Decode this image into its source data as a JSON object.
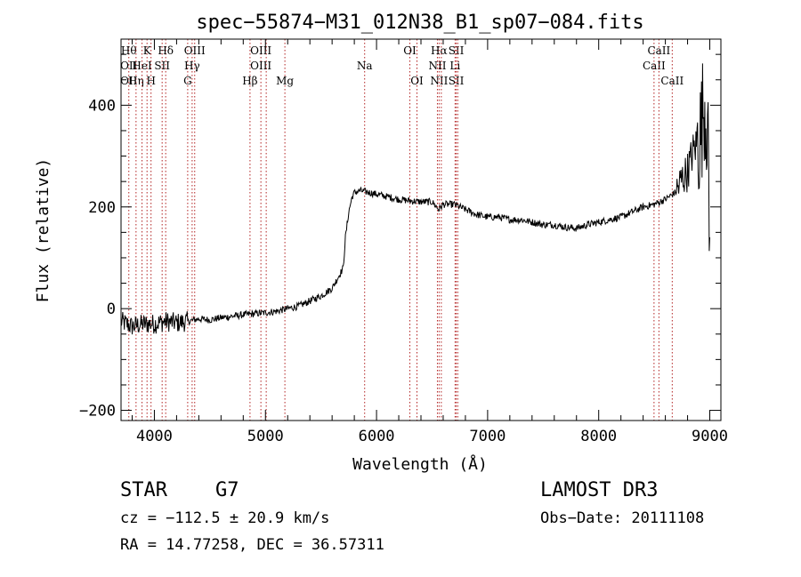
{
  "chart_data": {
    "type": "line",
    "title": "spec−55874−M31_012N38_B1_sp07−084.fits",
    "xlabel": "Wavelength (Å)",
    "ylabel": "Flux (relative)",
    "xlim": [
      3700,
      9100
    ],
    "ylim": [
      -220,
      530
    ],
    "x_ticks": [
      4000,
      5000,
      6000,
      7000,
      8000,
      9000
    ],
    "x_tick_labels": [
      "4000",
      "5000",
      "6000",
      "7000",
      "8000",
      "9000"
    ],
    "y_ticks": [
      -200,
      0,
      200,
      400
    ],
    "y_tick_labels": [
      "−200",
      "0",
      "200",
      "400"
    ],
    "grid": false,
    "series": [
      {
        "name": "flux",
        "color": "#000000",
        "x": [
          3700,
          3800,
          3900,
          4000,
          4100,
          4200,
          4300,
          4400,
          4500,
          4600,
          4700,
          4800,
          4900,
          5000,
          5100,
          5200,
          5300,
          5400,
          5500,
          5600,
          5650,
          5700,
          5720,
          5750,
          5780,
          5800,
          5850,
          5900,
          6000,
          6100,
          6200,
          6300,
          6400,
          6500,
          6560,
          6600,
          6700,
          6800,
          6900,
          7000,
          7100,
          7200,
          7300,
          7400,
          7500,
          7600,
          7700,
          7800,
          7900,
          8000,
          8100,
          8200,
          8300,
          8400,
          8500,
          8600,
          8700,
          8750,
          8800,
          8850,
          8900,
          8920,
          8950,
          8980,
          9000
        ],
        "y": [
          -25,
          -35,
          -30,
          -30,
          -25,
          -28,
          -25,
          -20,
          -22,
          -18,
          -15,
          -12,
          -10,
          -8,
          -5,
          0,
          5,
          15,
          25,
          40,
          60,
          80,
          140,
          190,
          220,
          228,
          232,
          230,
          225,
          220,
          215,
          212,
          210,
          210,
          195,
          205,
          205,
          195,
          185,
          180,
          180,
          175,
          175,
          170,
          165,
          165,
          160,
          158,
          165,
          170,
          175,
          180,
          190,
          200,
          205,
          215,
          230,
          255,
          270,
          310,
          330,
          350,
          410,
          360,
          100
        ]
      }
    ],
    "annotations": {
      "lines": [
        {
          "x": 3770,
          "labels": [
            "Hθ",
            "OII",
            "OII"
          ]
        },
        {
          "x": 3835,
          "labels": [
            "",
            "",
            "Hη"
          ]
        },
        {
          "x": 3889,
          "labels": [
            "",
            "HeI",
            ""
          ]
        },
        {
          "x": 3934,
          "labels": [
            "K",
            "",
            ""
          ]
        },
        {
          "x": 3970,
          "labels": [
            "",
            "",
            "H"
          ]
        },
        {
          "x": 4070,
          "labels": [
            "",
            "SII",
            ""
          ]
        },
        {
          "x": 4102,
          "labels": [
            "Hδ",
            "",
            ""
          ]
        },
        {
          "x": 4300,
          "labels": [
            "",
            "",
            "G"
          ]
        },
        {
          "x": 4340,
          "labels": [
            "",
            "Hγ",
            ""
          ]
        },
        {
          "x": 4363,
          "labels": [
            "OIII",
            "",
            ""
          ]
        },
        {
          "x": 4861,
          "labels": [
            "",
            "",
            "Hβ"
          ]
        },
        {
          "x": 4959,
          "labels": [
            "OIII",
            "OIII",
            ""
          ]
        },
        {
          "x": 5007,
          "labels": [
            "",
            "",
            ""
          ]
        },
        {
          "x": 5175,
          "labels": [
            "",
            "",
            "Mg"
          ]
        },
        {
          "x": 5893,
          "labels": [
            "",
            "Na",
            ""
          ]
        },
        {
          "x": 6300,
          "labels": [
            "OI",
            "",
            ""
          ]
        },
        {
          "x": 6364,
          "labels": [
            "",
            "",
            "OI"
          ]
        },
        {
          "x": 6548,
          "labels": [
            "",
            "NII",
            ""
          ]
        },
        {
          "x": 6563,
          "labels": [
            "Hα",
            "",
            "NII"
          ]
        },
        {
          "x": 6583,
          "labels": [
            "",
            "",
            ""
          ]
        },
        {
          "x": 6707,
          "labels": [
            "",
            "Li",
            ""
          ]
        },
        {
          "x": 6717,
          "labels": [
            "SII",
            "",
            "SII"
          ]
        },
        {
          "x": 6731,
          "labels": [
            "",
            "",
            ""
          ]
        },
        {
          "x": 8498,
          "labels": [
            "",
            "CaII",
            ""
          ]
        },
        {
          "x": 8542,
          "labels": [
            "CaII",
            "",
            ""
          ]
        },
        {
          "x": 8662,
          "labels": [
            "",
            "",
            "CaII"
          ]
        }
      ],
      "line_color": "#b22222"
    }
  },
  "info": {
    "class": "STAR",
    "subclass": "G7",
    "survey": "LAMOST DR3",
    "velocity": "cz = −112.5 ± 20.9 km/s",
    "obs_date": "Obs−Date: 20111108",
    "coords": "RA =  14.77258, DEC =  36.57311"
  }
}
